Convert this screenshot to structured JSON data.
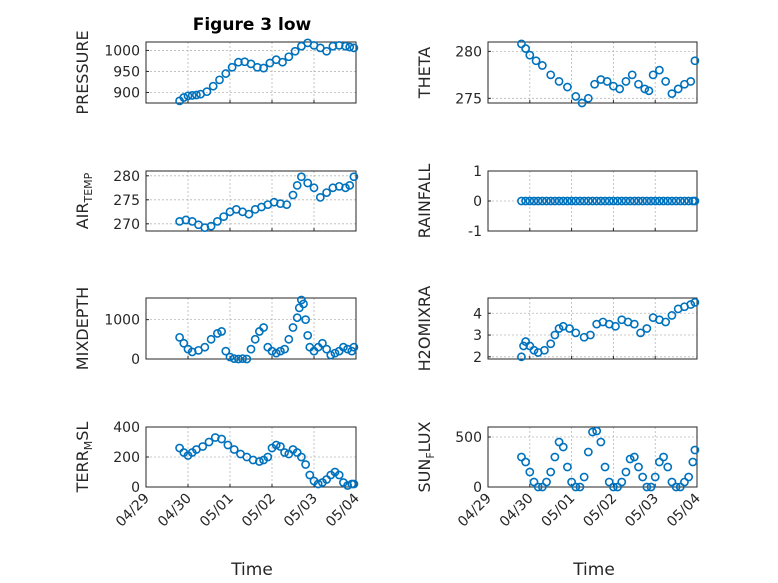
{
  "figure": {
    "title": "Figure 3 low",
    "xlabel": "Time",
    "x_tick_labels": [
      "04/29",
      "04/30",
      "05/01",
      "05/02",
      "05/03",
      "05/04"
    ],
    "marker_color": "#0072BD",
    "marker": "circle-open",
    "grid": true
  },
  "chart_data": [
    {
      "type": "scatter",
      "id": "pressure",
      "ylabel": "PRESSURE",
      "ylabel_sub": "",
      "ylim": [
        875,
        1020
      ],
      "yticks": [
        900,
        950,
        1000
      ],
      "grid": true,
      "x": [
        0.8,
        0.9,
        1.0,
        1.1,
        1.2,
        1.3,
        1.45,
        1.6,
        1.75,
        1.9,
        2.05,
        2.2,
        2.35,
        2.5,
        2.65,
        2.8,
        2.95,
        3.1,
        3.25,
        3.4,
        3.55,
        3.7,
        3.85,
        4.0,
        4.15,
        4.3,
        4.45,
        4.6,
        4.75,
        4.85,
        4.95
      ],
      "y": [
        880,
        888,
        892,
        893,
        894,
        896,
        902,
        915,
        930,
        945,
        960,
        972,
        973,
        968,
        960,
        958,
        970,
        978,
        972,
        985,
        998,
        1010,
        1018,
        1012,
        1006,
        998,
        1010,
        1012,
        1010,
        1008,
        1006
      ]
    },
    {
      "type": "scatter",
      "id": "theta",
      "ylabel": "THETA",
      "ylabel_sub": "",
      "ylim": [
        274.5,
        281
      ],
      "yticks": [
        275,
        280
      ],
      "grid": true,
      "x": [
        0.8,
        0.9,
        1.0,
        1.15,
        1.3,
        1.5,
        1.7,
        1.9,
        2.1,
        2.25,
        2.4,
        2.55,
        2.7,
        2.85,
        3.0,
        3.15,
        3.3,
        3.45,
        3.6,
        3.75,
        3.85,
        3.95,
        4.1,
        4.25,
        4.4,
        4.55,
        4.7,
        4.85,
        4.95
      ],
      "y": [
        280.8,
        280.3,
        279.6,
        279.0,
        278.5,
        277.5,
        276.8,
        276.2,
        275.2,
        274.5,
        275.0,
        276.5,
        277.0,
        276.8,
        276.3,
        276.0,
        276.8,
        277.5,
        276.5,
        276.0,
        275.8,
        277.5,
        278.0,
        276.8,
        275.5,
        276.0,
        276.5,
        276.8,
        279.0
      ]
    },
    {
      "type": "scatter",
      "id": "air_temp",
      "ylabel": "AIR",
      "ylabel_sub": "TEMP",
      "ylim": [
        268.5,
        281
      ],
      "yticks": [
        270,
        275,
        280
      ],
      "grid": true,
      "x": [
        0.8,
        0.95,
        1.1,
        1.25,
        1.4,
        1.55,
        1.7,
        1.85,
        2.0,
        2.15,
        2.3,
        2.45,
        2.6,
        2.75,
        2.9,
        3.05,
        3.2,
        3.35,
        3.5,
        3.6,
        3.7,
        3.85,
        4.0,
        4.15,
        4.3,
        4.45,
        4.6,
        4.75,
        4.85,
        4.95
      ],
      "y": [
        270.5,
        270.8,
        270.5,
        269.8,
        269.2,
        269.5,
        270.5,
        271.5,
        272.5,
        273.0,
        272.5,
        272.0,
        273.0,
        273.5,
        274.0,
        274.5,
        274.2,
        274.0,
        276.0,
        278.0,
        279.8,
        278.5,
        277.5,
        275.5,
        276.5,
        277.5,
        277.8,
        277.5,
        278.0,
        279.8
      ]
    },
    {
      "type": "scatter",
      "id": "rainfall",
      "ylabel": "RAINFALL",
      "ylabel_sub": "",
      "ylim": [
        -1,
        1
      ],
      "yticks": [
        -1,
        0,
        1
      ],
      "grid": true,
      "x": [
        0.8,
        0.9,
        1.0,
        1.1,
        1.2,
        1.3,
        1.4,
        1.5,
        1.6,
        1.7,
        1.8,
        1.9,
        2.0,
        2.1,
        2.2,
        2.3,
        2.4,
        2.5,
        2.6,
        2.7,
        2.8,
        2.9,
        3.0,
        3.1,
        3.2,
        3.3,
        3.4,
        3.5,
        3.6,
        3.7,
        3.8,
        3.9,
        4.0,
        4.1,
        4.2,
        4.3,
        4.4,
        4.5,
        4.6,
        4.7,
        4.8,
        4.9,
        4.95
      ],
      "y": [
        0,
        0,
        0,
        0,
        0,
        0,
        0,
        0,
        0,
        0,
        0,
        0,
        0,
        0,
        0,
        0,
        0,
        0,
        0,
        0,
        0,
        0,
        0,
        0,
        0,
        0,
        0,
        0,
        0,
        0,
        0,
        0,
        0,
        0,
        0,
        0,
        0,
        0,
        0,
        0,
        0,
        0,
        0
      ]
    },
    {
      "type": "scatter",
      "id": "mixdepth",
      "ylabel": "MIXDEPTH",
      "ylabel_sub": "",
      "ylim": [
        0,
        1550
      ],
      "yticks": [
        0,
        1000
      ],
      "grid": true,
      "x": [
        0.8,
        0.9,
        1.0,
        1.1,
        1.25,
        1.4,
        1.55,
        1.7,
        1.8,
        1.9,
        2.0,
        2.1,
        2.2,
        2.3,
        2.4,
        2.5,
        2.6,
        2.7,
        2.8,
        2.9,
        3.0,
        3.1,
        3.2,
        3.3,
        3.4,
        3.5,
        3.6,
        3.65,
        3.7,
        3.75,
        3.8,
        3.85,
        3.9,
        4.0,
        4.1,
        4.2,
        4.3,
        4.4,
        4.5,
        4.6,
        4.7,
        4.8,
        4.9,
        4.95
      ],
      "y": [
        550,
        400,
        250,
        180,
        220,
        300,
        500,
        650,
        700,
        200,
        50,
        10,
        0,
        10,
        0,
        250,
        500,
        700,
        800,
        300,
        200,
        150,
        200,
        250,
        500,
        800,
        1050,
        1300,
        1500,
        1400,
        1000,
        600,
        300,
        200,
        300,
        400,
        250,
        100,
        150,
        200,
        300,
        250,
        200,
        300
      ]
    },
    {
      "type": "scatter",
      "id": "h2omixra",
      "ylabel": "H2OMIXRA",
      "ylabel_sub": "",
      "ylim": [
        1.9,
        4.7
      ],
      "yticks": [
        2,
        3,
        4
      ],
      "grid": true,
      "x": [
        0.8,
        0.85,
        0.9,
        1.0,
        1.1,
        1.2,
        1.35,
        1.5,
        1.6,
        1.7,
        1.8,
        1.95,
        2.1,
        2.3,
        2.45,
        2.6,
        2.75,
        2.9,
        3.05,
        3.2,
        3.35,
        3.5,
        3.65,
        3.8,
        3.95,
        4.1,
        4.25,
        4.4,
        4.55,
        4.7,
        4.85,
        4.95
      ],
      "y": [
        2.0,
        2.5,
        2.7,
        2.5,
        2.3,
        2.2,
        2.3,
        2.6,
        3.0,
        3.3,
        3.4,
        3.3,
        3.1,
        2.9,
        3.0,
        3.5,
        3.6,
        3.5,
        3.4,
        3.7,
        3.6,
        3.5,
        3.1,
        3.3,
        3.8,
        3.7,
        3.6,
        3.9,
        4.2,
        4.3,
        4.4,
        4.5
      ]
    },
    {
      "type": "scatter",
      "id": "terr_msl",
      "ylabel": "TERR",
      "ylabel_sub": "M",
      "ylabel_suffix": "SL",
      "ylim": [
        0,
        400
      ],
      "yticks": [
        0,
        200,
        400
      ],
      "grid": true,
      "x": [
        0.8,
        0.9,
        1.0,
        1.1,
        1.2,
        1.35,
        1.5,
        1.65,
        1.8,
        1.95,
        2.1,
        2.25,
        2.4,
        2.55,
        2.7,
        2.8,
        2.9,
        3.0,
        3.1,
        3.2,
        3.3,
        3.4,
        3.5,
        3.6,
        3.7,
        3.8,
        3.9,
        4.0,
        4.1,
        4.2,
        4.3,
        4.4,
        4.5,
        4.6,
        4.7,
        4.8,
        4.9,
        4.95
      ],
      "y": [
        260,
        230,
        210,
        230,
        250,
        270,
        300,
        330,
        320,
        280,
        250,
        220,
        200,
        180,
        170,
        180,
        200,
        260,
        280,
        270,
        230,
        220,
        250,
        230,
        200,
        150,
        80,
        40,
        20,
        30,
        50,
        80,
        100,
        80,
        30,
        10,
        20,
        20
      ]
    },
    {
      "type": "scatter",
      "id": "sun_flux",
      "ylabel": "SUN",
      "ylabel_sub": "F",
      "ylabel_suffix": "LUX",
      "ylim": [
        0,
        600
      ],
      "yticks": [
        0,
        500
      ],
      "grid": true,
      "x": [
        0.8,
        0.9,
        1.0,
        1.1,
        1.2,
        1.3,
        1.4,
        1.5,
        1.6,
        1.7,
        1.8,
        1.9,
        2.0,
        2.1,
        2.2,
        2.3,
        2.4,
        2.5,
        2.6,
        2.7,
        2.8,
        2.9,
        3.0,
        3.1,
        3.2,
        3.3,
        3.4,
        3.5,
        3.6,
        3.7,
        3.8,
        3.9,
        4.0,
        4.1,
        4.2,
        4.3,
        4.4,
        4.5,
        4.6,
        4.7,
        4.8,
        4.9,
        4.95
      ],
      "y": [
        300,
        250,
        150,
        50,
        0,
        0,
        50,
        150,
        300,
        450,
        400,
        200,
        50,
        0,
        0,
        100,
        350,
        550,
        560,
        450,
        200,
        50,
        0,
        0,
        50,
        150,
        280,
        300,
        200,
        100,
        0,
        0,
        100,
        250,
        300,
        200,
        50,
        0,
        0,
        50,
        100,
        250,
        370
      ]
    }
  ]
}
